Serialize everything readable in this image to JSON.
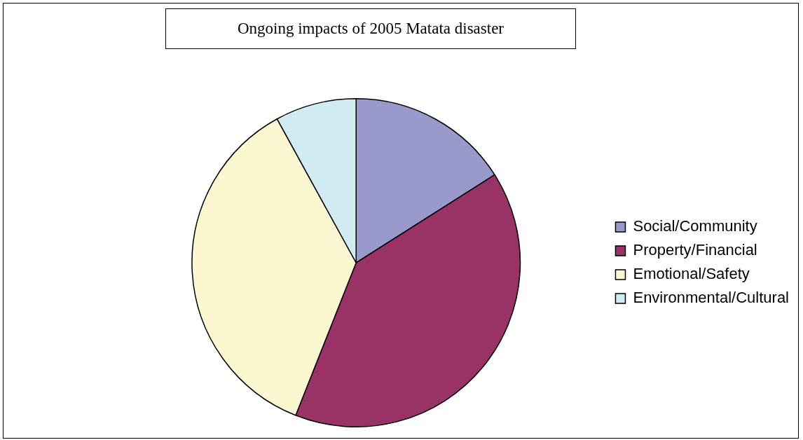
{
  "chart_data": {
    "type": "pie",
    "title": "Ongoing impacts of 2005 Matata disaster",
    "categories": [
      "Social/Community",
      "Property/Financial",
      "Emotional/Safety",
      "Environmental/Cultural"
    ],
    "values": [
      16,
      40,
      36,
      8
    ],
    "colors": [
      "#9999cc",
      "#993366",
      "#fbf7d0",
      "#d0ecf2"
    ],
    "legend": "right"
  }
}
